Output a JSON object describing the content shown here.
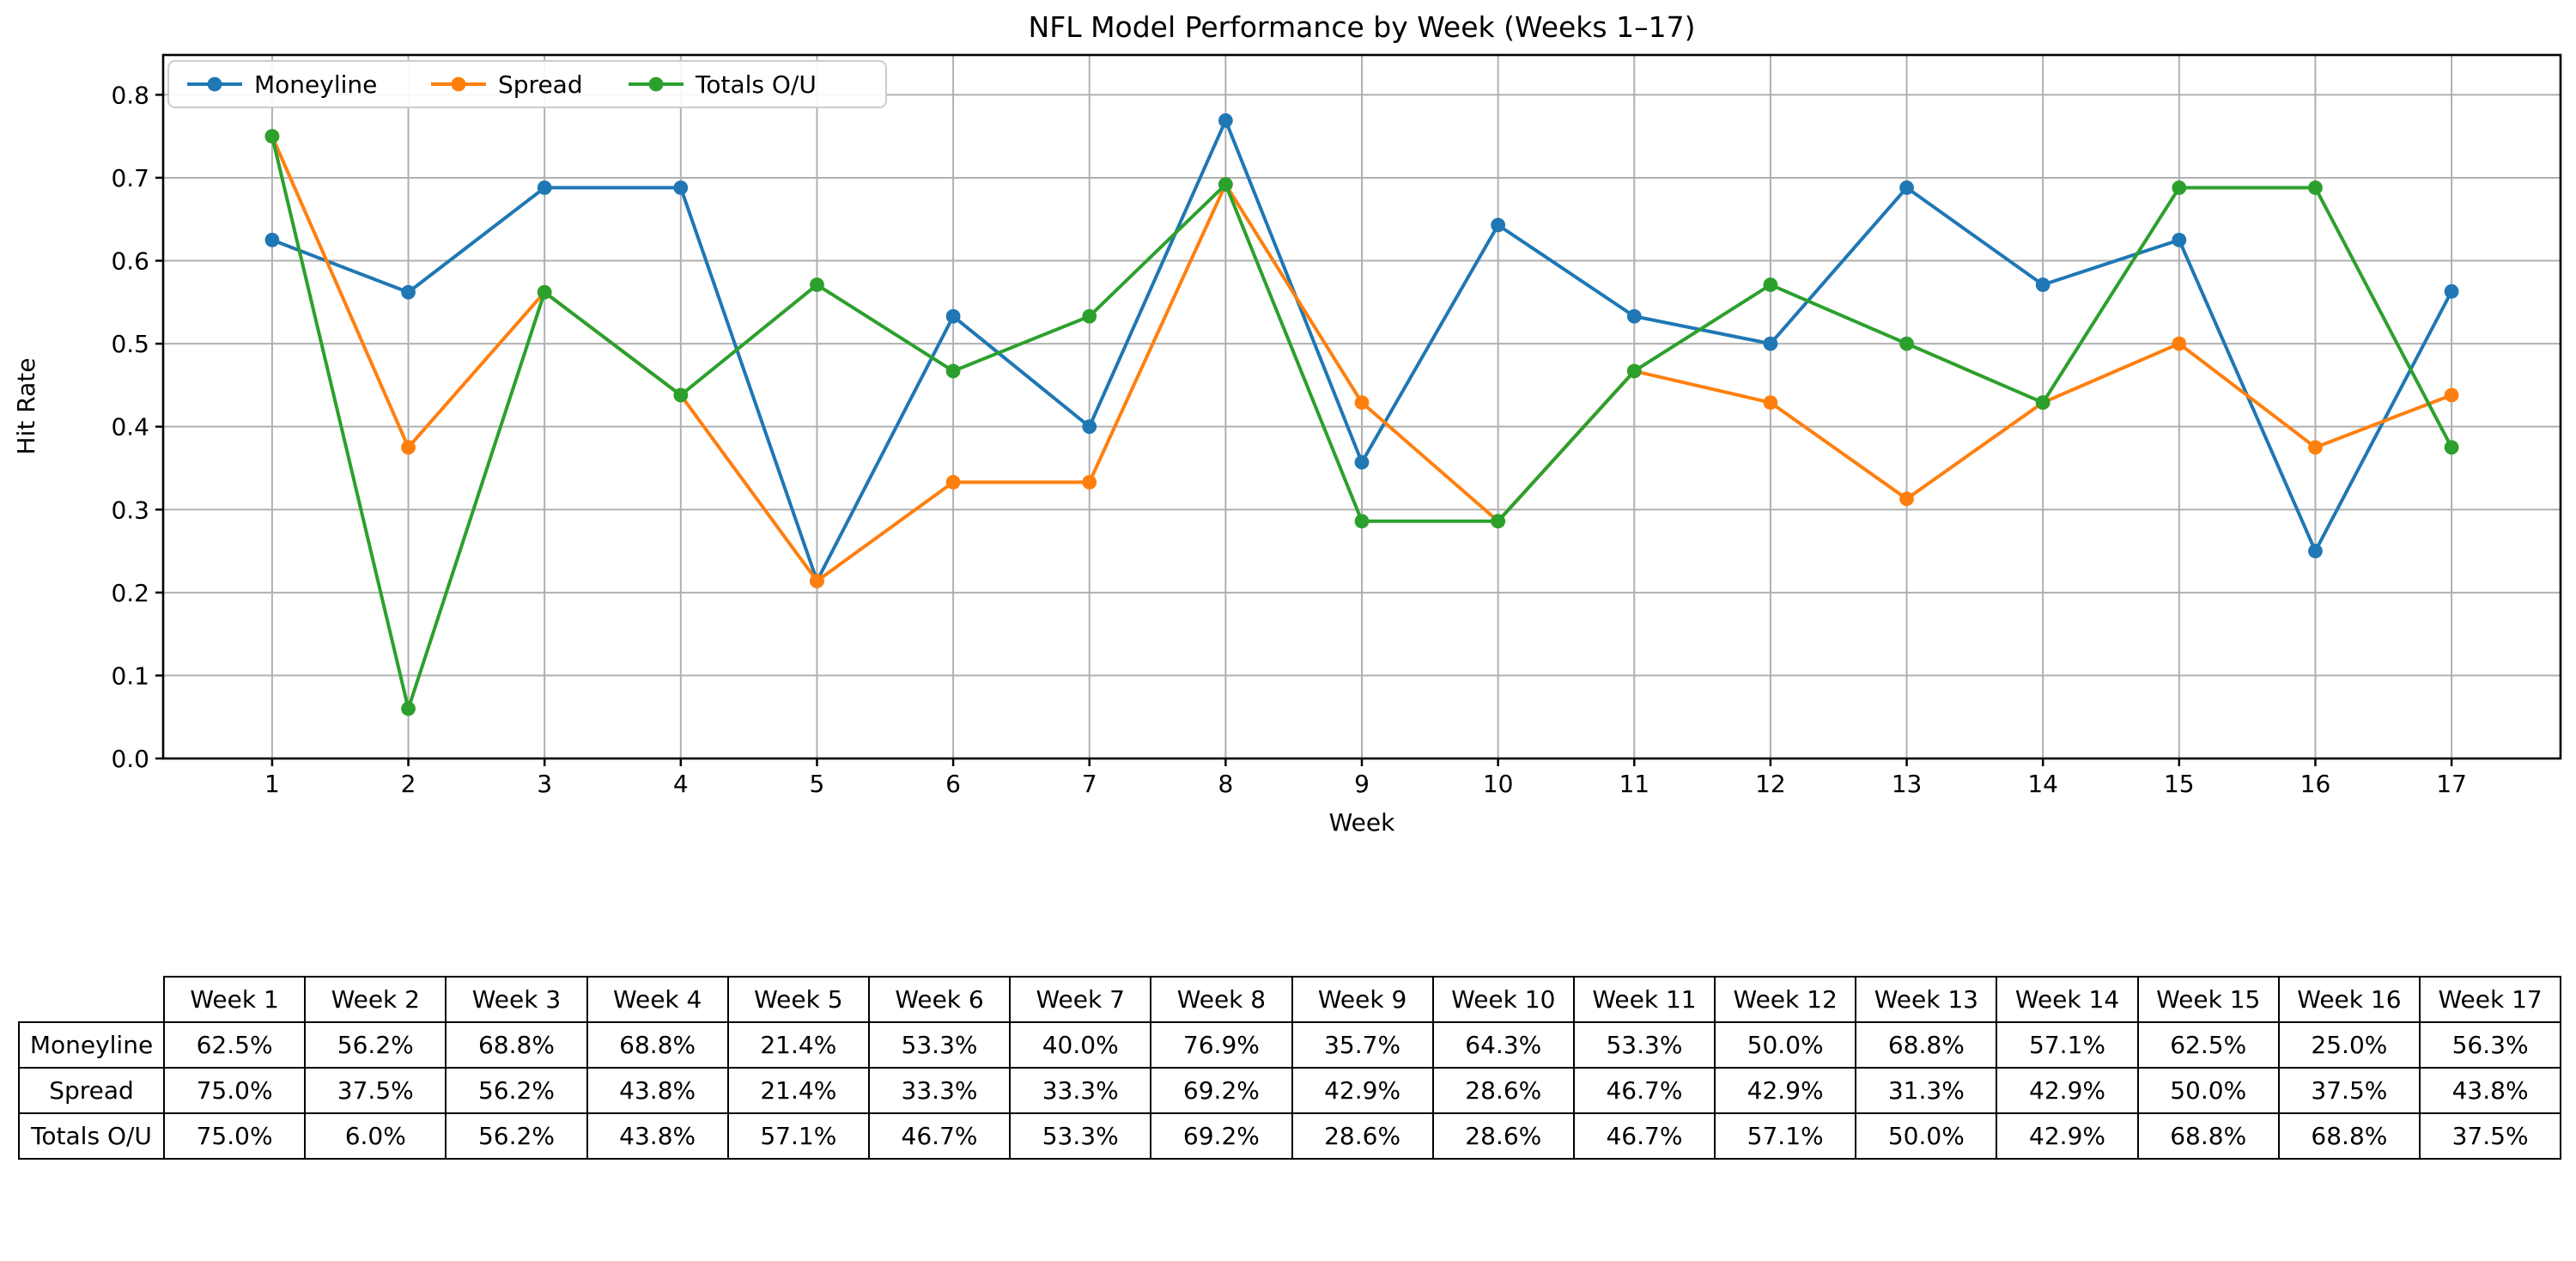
{
  "chart_data": {
    "type": "line",
    "title": "NFL Model Performance by Week (Weeks 1–17)",
    "xlabel": "Week",
    "ylabel": "Hit Rate",
    "x": [
      1,
      2,
      3,
      4,
      5,
      6,
      7,
      8,
      9,
      10,
      11,
      12,
      13,
      14,
      15,
      16,
      17
    ],
    "xlim": [
      0.2,
      17.8
    ],
    "ylim": [
      0,
      0.848
    ],
    "yticks": [
      0.0,
      0.1,
      0.2,
      0.3,
      0.4,
      0.5,
      0.6,
      0.7,
      0.8
    ],
    "grid": true,
    "legend_position": "upper left",
    "colors": {
      "grid": "#b0b0b0",
      "spine": "#000000",
      "legend_border": "#cccccc",
      "background": "#ffffff"
    },
    "series": [
      {
        "name": "Moneyline",
        "color": "#1f77b4",
        "values": [
          0.625,
          0.562,
          0.688,
          0.688,
          0.214,
          0.533,
          0.4,
          0.769,
          0.357,
          0.643,
          0.533,
          0.5,
          0.688,
          0.571,
          0.625,
          0.25,
          0.563
        ]
      },
      {
        "name": "Spread",
        "color": "#ff7f0e",
        "values": [
          0.75,
          0.375,
          0.562,
          0.438,
          0.214,
          0.333,
          0.333,
          0.692,
          0.429,
          0.286,
          0.467,
          0.429,
          0.313,
          0.429,
          0.5,
          0.375,
          0.438
        ]
      },
      {
        "name": "Totals O/U",
        "color": "#2ca02c",
        "values": [
          0.75,
          0.06,
          0.562,
          0.438,
          0.571,
          0.467,
          0.533,
          0.692,
          0.286,
          0.286,
          0.467,
          0.571,
          0.5,
          0.429,
          0.688,
          0.688,
          0.375
        ]
      }
    ]
  },
  "table": {
    "corner_label": "",
    "column_headers": [
      "Week 1",
      "Week 2",
      "Week 3",
      "Week 4",
      "Week 5",
      "Week 6",
      "Week 7",
      "Week 8",
      "Week 9",
      "Week 10",
      "Week 11",
      "Week 12",
      "Week 13",
      "Week 14",
      "Week 15",
      "Week 16",
      "Week 17"
    ],
    "rows": [
      {
        "label": "Moneyline",
        "values": [
          "62.5%",
          "56.2%",
          "68.8%",
          "68.8%",
          "21.4%",
          "53.3%",
          "40.0%",
          "76.9%",
          "35.7%",
          "64.3%",
          "53.3%",
          "50.0%",
          "68.8%",
          "57.1%",
          "62.5%",
          "25.0%",
          "56.3%"
        ]
      },
      {
        "label": "Spread",
        "values": [
          "75.0%",
          "37.5%",
          "56.2%",
          "43.8%",
          "21.4%",
          "33.3%",
          "33.3%",
          "69.2%",
          "42.9%",
          "28.6%",
          "46.7%",
          "42.9%",
          "31.3%",
          "42.9%",
          "50.0%",
          "37.5%",
          "43.8%"
        ]
      },
      {
        "label": "Totals O/U",
        "values": [
          "75.0%",
          "6.0%",
          "56.2%",
          "43.8%",
          "57.1%",
          "46.7%",
          "53.3%",
          "69.2%",
          "28.6%",
          "28.6%",
          "46.7%",
          "57.1%",
          "50.0%",
          "42.9%",
          "68.8%",
          "68.8%",
          "37.5%"
        ]
      }
    ]
  }
}
